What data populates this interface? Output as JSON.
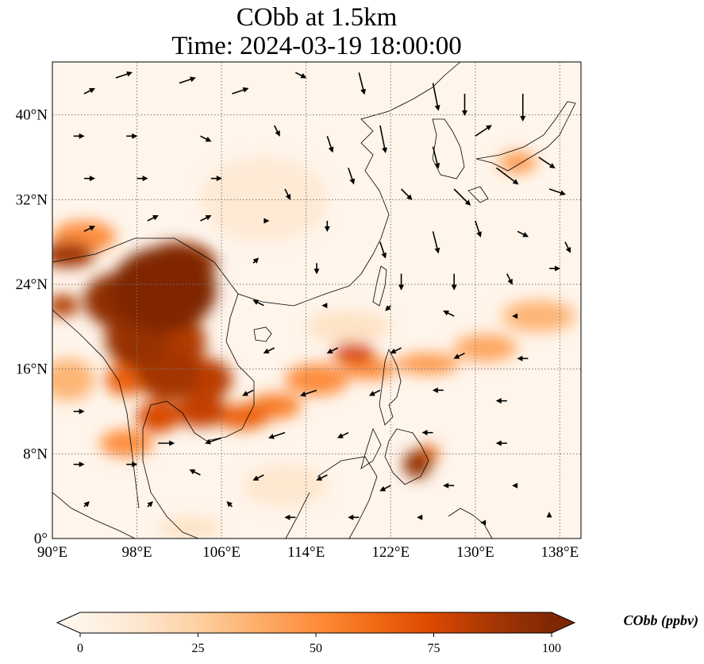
{
  "figure": {
    "title_line1": "CObb at 1.5km",
    "title_line2": "Time: 2024-03-19 18:00:00"
  },
  "map": {
    "lon_range": [
      90,
      140
    ],
    "lat_range": [
      0,
      45
    ],
    "lon_ticks": [
      90,
      98,
      106,
      114,
      122,
      130,
      138
    ],
    "lon_tick_labels": [
      "90°E",
      "98°E",
      "106°E",
      "114°E",
      "122°E",
      "130°E",
      "138°E"
    ],
    "lat_ticks": [
      0,
      8,
      16,
      24,
      32,
      40
    ],
    "lat_tick_labels": [
      "0°",
      "8°N",
      "16°N",
      "24°N",
      "32°N",
      "40°N"
    ],
    "gridlines": true,
    "background_color": "#fff5eb"
  },
  "colorbar": {
    "label": "CObb (ppbv)",
    "min": 0,
    "max": 100,
    "ticks": [
      0,
      25,
      50,
      75,
      100
    ],
    "tick_labels": [
      "0",
      "25",
      "50",
      "75",
      "100"
    ],
    "extend": "both",
    "colors": [
      "#fff5eb",
      "#fee6ce",
      "#fdd0a2",
      "#fdae6b",
      "#fd8d3c",
      "#f16913",
      "#d94801",
      "#a63603",
      "#7f2704"
    ]
  },
  "chart_data": {
    "type": "heatmap",
    "variable": "CObb",
    "units": "ppbv",
    "level": "1.5km",
    "time": "2024-03-19 18:00:00",
    "plumes": [
      {
        "lon": 100.5,
        "lat": 23.5,
        "rlon": 5.0,
        "rlat": 4.0,
        "value": 100
      },
      {
        "lon": 96.0,
        "lat": 22.5,
        "rlon": 3.0,
        "rlat": 2.5,
        "value": 95
      },
      {
        "lon": 102.0,
        "lat": 26.0,
        "rlon": 3.5,
        "rlat": 2.0,
        "value": 95
      },
      {
        "lon": 91.5,
        "lat": 26.8,
        "rlon": 2.5,
        "rlat": 1.2,
        "value": 90
      },
      {
        "lon": 91.0,
        "lat": 22.0,
        "rlon": 1.5,
        "rlat": 1.0,
        "value": 85
      },
      {
        "lon": 98.0,
        "lat": 19.0,
        "rlon": 3.0,
        "rlat": 3.0,
        "value": 92
      },
      {
        "lon": 102.0,
        "lat": 18.5,
        "rlon": 2.5,
        "rlat": 2.5,
        "value": 85
      },
      {
        "lon": 101.0,
        "lat": 15.5,
        "rlon": 3.0,
        "rlat": 2.5,
        "value": 88
      },
      {
        "lon": 104.5,
        "lat": 15.0,
        "rlon": 2.5,
        "rlat": 2.0,
        "value": 82
      },
      {
        "lon": 104.0,
        "lat": 12.0,
        "rlon": 2.5,
        "rlat": 1.5,
        "value": 80
      },
      {
        "lon": 100.0,
        "lat": 11.5,
        "rlon": 2.0,
        "rlat": 1.5,
        "value": 75
      },
      {
        "lon": 97.0,
        "lat": 15.0,
        "rlon": 2.0,
        "rlat": 1.5,
        "value": 65
      },
      {
        "lon": 97.0,
        "lat": 9.0,
        "rlon": 2.5,
        "rlat": 1.3,
        "value": 50
      },
      {
        "lon": 91.5,
        "lat": 15.0,
        "rlon": 2.5,
        "rlat": 2.0,
        "value": 35
      },
      {
        "lon": 93.0,
        "lat": 28.5,
        "rlon": 3.0,
        "rlat": 1.5,
        "value": 50
      },
      {
        "lon": 108.0,
        "lat": 11.5,
        "rlon": 2.5,
        "rlat": 1.2,
        "value": 65
      },
      {
        "lon": 111.0,
        "lat": 12.5,
        "rlon": 2.5,
        "rlat": 1.2,
        "value": 55
      },
      {
        "lon": 115.0,
        "lat": 15.0,
        "rlon": 3.0,
        "rlat": 1.5,
        "value": 50
      },
      {
        "lon": 118.5,
        "lat": 17.5,
        "rlon": 2.0,
        "rlat": 1.0,
        "value": 75
      },
      {
        "lon": 120.0,
        "lat": 16.0,
        "rlon": 2.5,
        "rlat": 1.0,
        "value": 50
      },
      {
        "lon": 125.5,
        "lat": 16.5,
        "rlon": 3.0,
        "rlat": 1.0,
        "value": 45
      },
      {
        "lon": 131.0,
        "lat": 18.0,
        "rlon": 3.0,
        "rlat": 1.3,
        "value": 40
      },
      {
        "lon": 136.0,
        "lat": 21.0,
        "rlon": 3.5,
        "rlat": 1.5,
        "value": 35
      },
      {
        "lon": 124.5,
        "lat": 7.0,
        "rlon": 1.3,
        "rlat": 1.3,
        "value": 95
      },
      {
        "lon": 125.5,
        "lat": 8.0,
        "rlon": 1.0,
        "rlat": 0.8,
        "value": 70
      },
      {
        "lon": 134.0,
        "lat": 35.5,
        "rlon": 1.8,
        "rlat": 1.0,
        "value": 45
      },
      {
        "lon": 103.0,
        "lat": 1.0,
        "rlon": 3.0,
        "rlat": 1.0,
        "value": 15
      },
      {
        "lon": 112.0,
        "lat": 5.0,
        "rlon": 4.0,
        "rlat": 2.0,
        "value": 12
      },
      {
        "lon": 118.0,
        "lat": 20.0,
        "rlon": 4.0,
        "rlat": 1.5,
        "value": 15
      },
      {
        "lon": 110.0,
        "lat": 32.0,
        "rlon": 6.0,
        "rlat": 4.0,
        "value": 10
      }
    ],
    "wind_vectors": [
      {
        "lon": 93.0,
        "lat": 42.0,
        "u": 2,
        "v": 1
      },
      {
        "lon": 96.0,
        "lat": 43.5,
        "u": 3,
        "v": 1
      },
      {
        "lon": 102.0,
        "lat": 43.0,
        "u": 3,
        "v": 1
      },
      {
        "lon": 107.0,
        "lat": 42.0,
        "u": 3,
        "v": 1
      },
      {
        "lon": 113.0,
        "lat": 44.0,
        "u": 2,
        "v": -1
      },
      {
        "lon": 119.0,
        "lat": 44.0,
        "u": 1,
        "v": -4
      },
      {
        "lon": 126.0,
        "lat": 43.0,
        "u": 1,
        "v": -5
      },
      {
        "lon": 129.0,
        "lat": 42.0,
        "u": 0,
        "v": -4
      },
      {
        "lon": 134.5,
        "lat": 42.0,
        "u": 0,
        "v": -5
      },
      {
        "lon": 92.0,
        "lat": 38.0,
        "u": 2,
        "v": 0
      },
      {
        "lon": 97.0,
        "lat": 38.0,
        "u": 2,
        "v": 0
      },
      {
        "lon": 104.0,
        "lat": 38.0,
        "u": 2,
        "v": -1
      },
      {
        "lon": 111.0,
        "lat": 39.0,
        "u": 1,
        "v": -2
      },
      {
        "lon": 116.0,
        "lat": 38.0,
        "u": 1,
        "v": -3
      },
      {
        "lon": 121.0,
        "lat": 39.0,
        "u": 1,
        "v": -5
      },
      {
        "lon": 126.0,
        "lat": 37.0,
        "u": 1,
        "v": -4
      },
      {
        "lon": 130.0,
        "lat": 38.0,
        "u": 3,
        "v": 2
      },
      {
        "lon": 136.0,
        "lat": 36.0,
        "u": 3,
        "v": -2
      },
      {
        "lon": 93.0,
        "lat": 34.0,
        "u": 2,
        "v": 0
      },
      {
        "lon": 98.0,
        "lat": 34.0,
        "u": 2,
        "v": 0
      },
      {
        "lon": 105.0,
        "lat": 34.0,
        "u": 2,
        "v": 0
      },
      {
        "lon": 112.0,
        "lat": 33.0,
        "u": 1,
        "v": -2
      },
      {
        "lon": 118.0,
        "lat": 35.0,
        "u": 1,
        "v": -3
      },
      {
        "lon": 123.0,
        "lat": 33.0,
        "u": 2,
        "v": -2
      },
      {
        "lon": 128.0,
        "lat": 33.0,
        "u": 3,
        "v": -3
      },
      {
        "lon": 132.0,
        "lat": 35.0,
        "u": 4,
        "v": -3
      },
      {
        "lon": 137.0,
        "lat": 33.0,
        "u": 3,
        "v": -1
      },
      {
        "lon": 93.0,
        "lat": 29.0,
        "u": 2,
        "v": 1
      },
      {
        "lon": 99.0,
        "lat": 30.0,
        "u": 2,
        "v": 1
      },
      {
        "lon": 104.0,
        "lat": 30.0,
        "u": 2,
        "v": 1
      },
      {
        "lon": 110.0,
        "lat": 30.0,
        "u": 1,
        "v": 0
      },
      {
        "lon": 116.0,
        "lat": 30.0,
        "u": 0,
        "v": -2
      },
      {
        "lon": 121.0,
        "lat": 28.0,
        "u": 1,
        "v": -3
      },
      {
        "lon": 126.0,
        "lat": 29.0,
        "u": 1,
        "v": -4
      },
      {
        "lon": 130.0,
        "lat": 30.0,
        "u": 1,
        "v": -3
      },
      {
        "lon": 134.0,
        "lat": 29.0,
        "u": 2,
        "v": -1
      },
      {
        "lon": 138.5,
        "lat": 28.0,
        "u": 1,
        "v": -2
      },
      {
        "lon": 109.0,
        "lat": 26.0,
        "u": 1,
        "v": 1
      },
      {
        "lon": 115.0,
        "lat": 26.0,
        "u": 0,
        "v": -2
      },
      {
        "lon": 123.0,
        "lat": 25.0,
        "u": 0,
        "v": -3
      },
      {
        "lon": 128.0,
        "lat": 25.0,
        "u": 0,
        "v": -3
      },
      {
        "lon": 133.0,
        "lat": 25.0,
        "u": 1,
        "v": -2
      },
      {
        "lon": 137.0,
        "lat": 25.5,
        "u": 2,
        "v": 0
      },
      {
        "lon": 110.0,
        "lat": 22.0,
        "u": -2,
        "v": 1
      },
      {
        "lon": 116.0,
        "lat": 22.0,
        "u": -1,
        "v": 0
      },
      {
        "lon": 122.0,
        "lat": 22.0,
        "u": -1,
        "v": -1
      },
      {
        "lon": 128.0,
        "lat": 21.0,
        "u": -2,
        "v": 1
      },
      {
        "lon": 134.0,
        "lat": 21.0,
        "u": -1,
        "v": 0
      },
      {
        "lon": 111.0,
        "lat": 18.0,
        "u": -2,
        "v": -1
      },
      {
        "lon": 117.0,
        "lat": 18.0,
        "u": -2,
        "v": -1
      },
      {
        "lon": 123.0,
        "lat": 18.0,
        "u": -2,
        "v": -1
      },
      {
        "lon": 129.0,
        "lat": 17.5,
        "u": -2,
        "v": -1
      },
      {
        "lon": 135.0,
        "lat": 17.0,
        "u": -2,
        "v": 0
      },
      {
        "lon": 109.0,
        "lat": 14.0,
        "u": -2,
        "v": -1
      },
      {
        "lon": 115.0,
        "lat": 14.0,
        "u": -3,
        "v": -1
      },
      {
        "lon": 121.0,
        "lat": 14.0,
        "u": -2,
        "v": -1
      },
      {
        "lon": 127.0,
        "lat": 14.0,
        "u": -2,
        "v": 0
      },
      {
        "lon": 133.0,
        "lat": 13.0,
        "u": -2,
        "v": 0
      },
      {
        "lon": 92.0,
        "lat": 12.0,
        "u": 2,
        "v": 0
      },
      {
        "lon": 100.0,
        "lat": 9.0,
        "u": 3,
        "v": 0
      },
      {
        "lon": 106.0,
        "lat": 9.5,
        "u": -3,
        "v": -1
      },
      {
        "lon": 112.0,
        "lat": 10.0,
        "u": -3,
        "v": -1
      },
      {
        "lon": 118.0,
        "lat": 10.0,
        "u": -2,
        "v": -1
      },
      {
        "lon": 126.0,
        "lat": 10.0,
        "u": -2,
        "v": 0
      },
      {
        "lon": 133.0,
        "lat": 9.0,
        "u": -2,
        "v": 0
      },
      {
        "lon": 92.0,
        "lat": 7.0,
        "u": 2,
        "v": 0
      },
      {
        "lon": 97.0,
        "lat": 7.0,
        "u": 2,
        "v": 0
      },
      {
        "lon": 104.0,
        "lat": 6.0,
        "u": -2,
        "v": 1
      },
      {
        "lon": 110.0,
        "lat": 6.0,
        "u": -2,
        "v": -1
      },
      {
        "lon": 116.0,
        "lat": 6.0,
        "u": -2,
        "v": -1
      },
      {
        "lon": 122.0,
        "lat": 5.0,
        "u": -2,
        "v": -1
      },
      {
        "lon": 128.0,
        "lat": 5.0,
        "u": -2,
        "v": 0
      },
      {
        "lon": 134.0,
        "lat": 5.0,
        "u": -1,
        "v": 0
      },
      {
        "lon": 93.0,
        "lat": 3.0,
        "u": 1,
        "v": 1
      },
      {
        "lon": 99.0,
        "lat": 3.0,
        "u": 1,
        "v": 1
      },
      {
        "lon": 107.0,
        "lat": 3.0,
        "u": -1,
        "v": 1
      },
      {
        "lon": 113.0,
        "lat": 2.0,
        "u": -2,
        "v": 0
      },
      {
        "lon": 119.0,
        "lat": 2.0,
        "u": -2,
        "v": 0
      },
      {
        "lon": 125.0,
        "lat": 2.0,
        "u": -1,
        "v": 0
      },
      {
        "lon": 131.0,
        "lat": 1.5,
        "u": -1,
        "v": 0
      },
      {
        "lon": 137.0,
        "lat": 2.0,
        "u": 0,
        "v": 1
      }
    ]
  }
}
